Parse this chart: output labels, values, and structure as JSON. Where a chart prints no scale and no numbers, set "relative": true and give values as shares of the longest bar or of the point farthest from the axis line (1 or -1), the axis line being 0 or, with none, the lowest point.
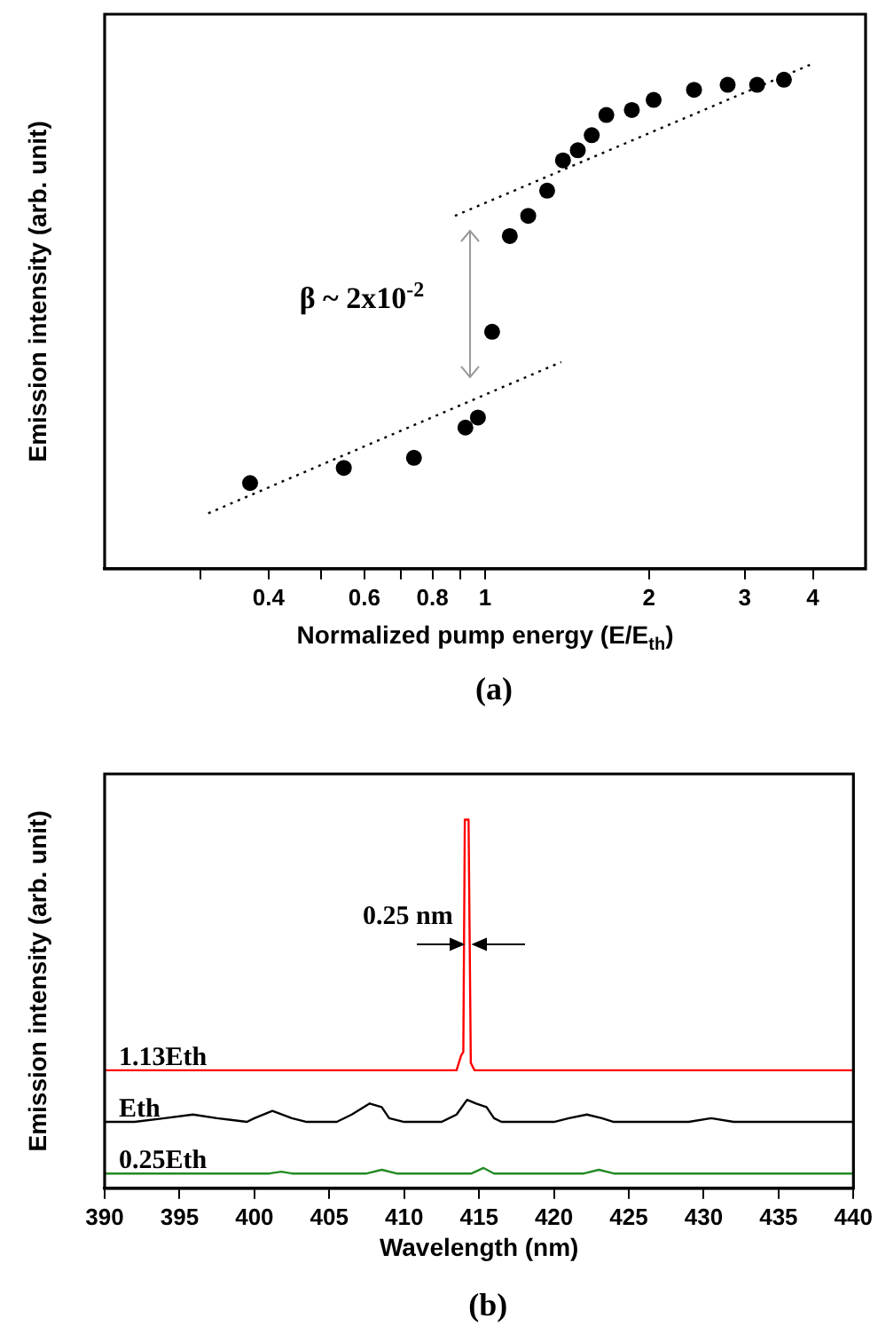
{
  "chart_data": [
    {
      "type": "scatter",
      "title": "(a)",
      "xlabel": "Normalized pump energy (E/E$_{th}$)",
      "ylabel": "Emission intensity (arb. unit)",
      "relative": true,
      "log": "x",
      "xlim": [
        0.2,
        5
      ],
      "xticks": [
        {
          "value": 0.3,
          "label": null
        },
        0.4,
        {
          "value": 0.5,
          "label": null
        },
        0.6,
        {
          "value": 0.7,
          "label": null
        },
        0.8,
        {
          "value": 0.9,
          "label": null
        },
        1,
        2,
        3,
        4
      ],
      "grid": false,
      "legend": false,
      "marker": "circle",
      "annotations": [
        "β ~ 2x10$^{-2}$"
      ],
      "series": [
        {
          "color": "#000000",
          "x": [
            0.37,
            0.55,
            0.74,
            0.92,
            0.97,
            1.03,
            1.11,
            1.2,
            1.3,
            1.39,
            1.48,
            1.57,
            1.67,
            1.86,
            2.04,
            2.42,
            2.79,
            3.16,
            3.54
          ],
          "values": [
            0.17,
            0.2,
            0.22,
            0.28,
            0.3,
            0.47,
            0.66,
            0.7,
            0.75,
            0.81,
            0.83,
            0.86,
            0.9,
            0.91,
            0.93,
            0.95,
            0.96,
            0.96,
            0.97
          ]
        },
        {
          "type": "line",
          "color": "#000000",
          "marker": "none",
          "line_style": "dotted",
          "x": [
            0.31,
            1.38
          ],
          "values": [
            0.11,
            0.41
          ]
        },
        {
          "type": "line",
          "color": "#000000",
          "marker": "none",
          "line_style": "dotted",
          "x": [
            0.88,
            3.96
          ],
          "values": [
            0.7,
            1
          ]
        }
      ]
    },
    {
      "type": "line",
      "title": "(b)",
      "xlabel": "Wavelength (nm)",
      "ylabel": "Emission intensity (arb. unit)",
      "relative": true,
      "xlim": [
        390,
        440
      ],
      "xticks": [
        390,
        395,
        400,
        405,
        410,
        415,
        420,
        425,
        430,
        435,
        440
      ],
      "grid": false,
      "legend": false,
      "marker": "none",
      "line_style": "solid",
      "annotations": [
        {
          "text": "0.25 nm",
          "x": 414.2,
          "y": 0.66
        }
      ],
      "series": [
        {
          "name": "1.13Eth",
          "color": "#ff0000",
          "x": [
            390,
            413.5,
            413.8,
            413.95,
            414.05,
            414.3,
            414.45,
            414.7,
            440
          ],
          "values": [
            0.32,
            0.32,
            0.36,
            0.37,
            1,
            1,
            0.34,
            0.32,
            0.32
          ]
        },
        {
          "name": "Eth",
          "color": "#000000",
          "x": [
            390,
            392,
            394,
            395.9,
            397.5,
            399.5,
            400,
            401.2,
            402.5,
            403.5,
            405.5,
            406.5,
            407.7,
            408.5,
            409,
            410,
            412.5,
            413.5,
            414.2,
            414.8,
            415.5,
            416,
            416.5,
            420,
            421,
            422.2,
            423.2,
            424,
            429,
            430.5,
            432,
            440
          ],
          "values": [
            0.18,
            0.18,
            0.19,
            0.2,
            0.19,
            0.18,
            0.19,
            0.21,
            0.19,
            0.18,
            0.18,
            0.2,
            0.23,
            0.22,
            0.19,
            0.18,
            0.18,
            0.2,
            0.24,
            0.23,
            0.22,
            0.19,
            0.18,
            0.18,
            0.19,
            0.2,
            0.19,
            0.18,
            0.18,
            0.19,
            0.18,
            0.18
          ]
        },
        {
          "name": "0.25Eth",
          "color": "#228b22",
          "x": [
            390,
            401,
            401.8,
            402.5,
            407.5,
            408.5,
            409.5,
            414.5,
            415.3,
            416,
            422,
            423,
            424,
            440
          ],
          "values": [
            0.04,
            0.04,
            0.045,
            0.04,
            0.04,
            0.05,
            0.04,
            0.04,
            0.055,
            0.04,
            0.04,
            0.05,
            0.04,
            0.04
          ]
        }
      ]
    }
  ]
}
